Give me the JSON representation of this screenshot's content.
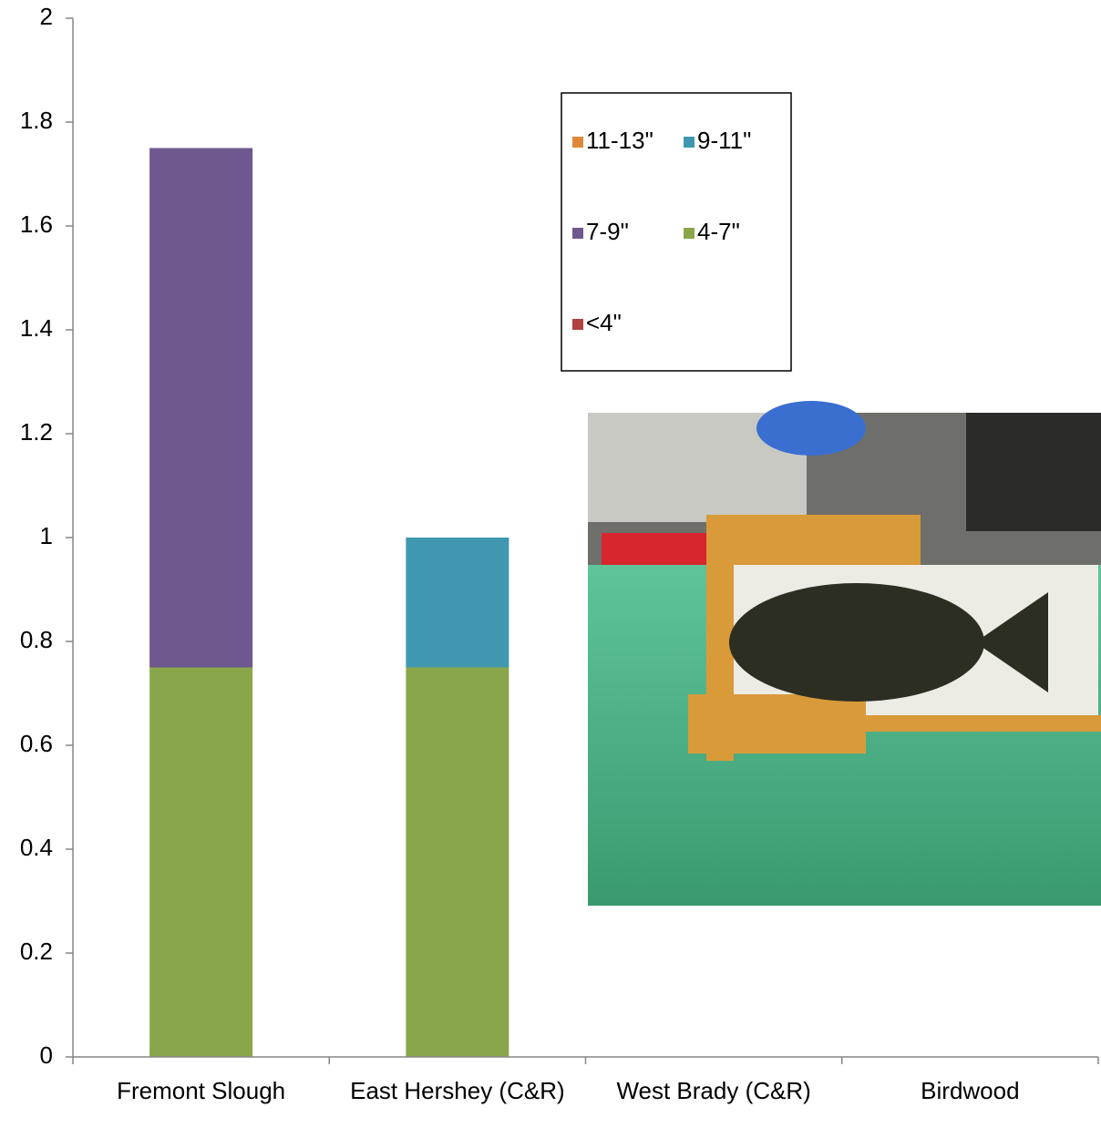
{
  "chart_data": {
    "type": "stacked-bar",
    "categories": [
      "Fremont Slough",
      "East Hershey (C&R)",
      "West Brady (C&R)",
      "Birdwood"
    ],
    "series": [
      {
        "name": "<4\"",
        "color": "#b0423f",
        "values": [
          0,
          0,
          0,
          0
        ]
      },
      {
        "name": "4-7\"",
        "color": "#8aa64b",
        "values": [
          0.75,
          0.75,
          0,
          0
        ]
      },
      {
        "name": "7-9\"",
        "color": "#6f578f",
        "values": [
          1.0,
          0,
          0,
          0
        ]
      },
      {
        "name": "9-11\"",
        "color": "#3f98b0",
        "values": [
          0,
          0.25,
          0,
          0
        ]
      },
      {
        "name": "11-13\"",
        "color": "#e0883a",
        "values": [
          0,
          0,
          0,
          0
        ]
      }
    ],
    "ylim": [
      0,
      2
    ],
    "yticks": [
      0,
      0.2,
      0.4,
      0.6,
      0.8,
      1,
      1.2,
      1.4,
      1.6,
      1.8,
      2
    ],
    "grid": false,
    "legend": "top-right"
  }
}
